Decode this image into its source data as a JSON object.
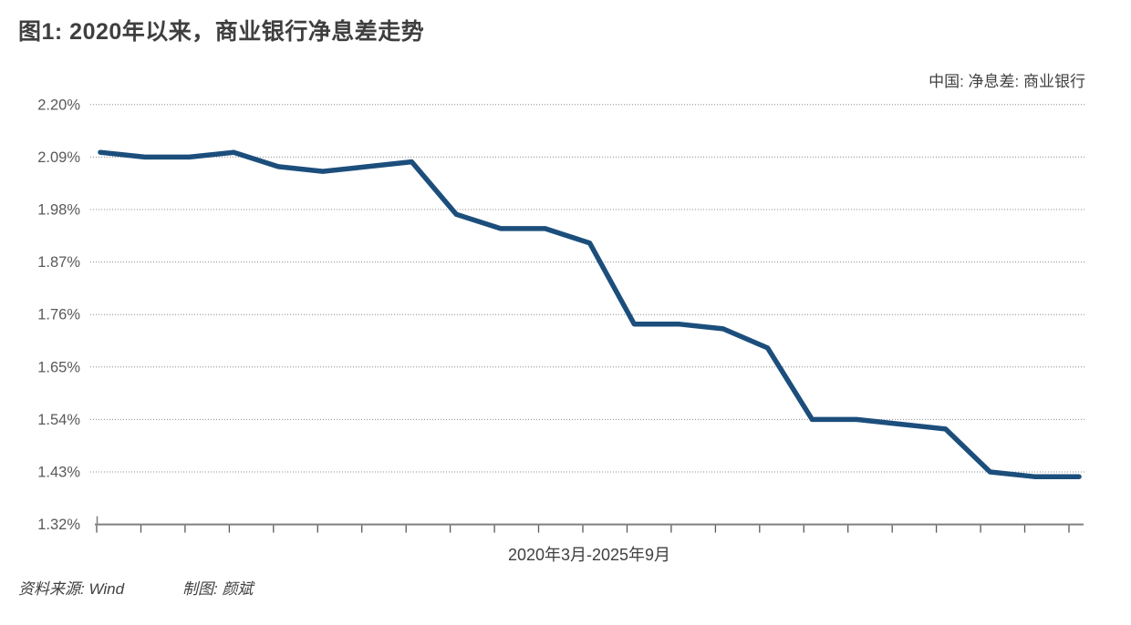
{
  "title": "图1: 2020年以来，商业银行净息差走势",
  "legend": "中国: 净息差: 商业银行",
  "footer": {
    "source": "资料来源: Wind",
    "credit": "制图: 颜斌"
  },
  "colors": {
    "line": "#1C4E7C",
    "title_text": "#3F3F3F",
    "axis_text": "#595959",
    "gridline": "#8C8C8C",
    "axis_line": "#7F7F7F"
  },
  "chart_data": {
    "type": "line",
    "title": "图1: 2020年以来，商业银行净息差走势",
    "series": [
      {
        "name": "中国: 净息差: 商业银行",
        "values": [
          2.1,
          2.09,
          2.09,
          2.1,
          2.07,
          2.06,
          2.07,
          2.08,
          1.97,
          1.94,
          1.94,
          1.91,
          1.74,
          1.74,
          1.73,
          1.69,
          1.54,
          1.54,
          1.53,
          1.52,
          1.43,
          1.42,
          1.42
        ]
      }
    ],
    "x": [
      "2020Q1",
      "2020Q2",
      "2020Q3",
      "2020Q4",
      "2021Q1",
      "2021Q2",
      "2021Q3",
      "2021Q4",
      "2022Q1",
      "2022Q2",
      "2022Q3",
      "2022Q4",
      "2023Q1",
      "2023Q2",
      "2023Q3",
      "2023Q4",
      "2024Q1",
      "2024Q2",
      "2024Q3",
      "2024Q4",
      "2025Q1",
      "2025Q2",
      "2025Q3"
    ],
    "xlabel": "2020年3月-2025年9月",
    "ylabel": "",
    "unit": "%",
    "ylim": [
      1.32,
      2.2
    ],
    "y_ticks": [
      {
        "value": 2.2,
        "label": "2.20%"
      },
      {
        "value": 2.09,
        "label": "2.09%"
      },
      {
        "value": 1.98,
        "label": "1.98%"
      },
      {
        "value": 1.87,
        "label": "1.87%"
      },
      {
        "value": 1.76,
        "label": "1.76%"
      },
      {
        "value": 1.65,
        "label": "1.65%"
      },
      {
        "value": 1.54,
        "label": "1.54%"
      },
      {
        "value": 1.43,
        "label": "1.43%"
      },
      {
        "value": 1.32,
        "label": "1.32%"
      }
    ],
    "grid": "horizontal-dotted",
    "legend_position": "top-right"
  }
}
